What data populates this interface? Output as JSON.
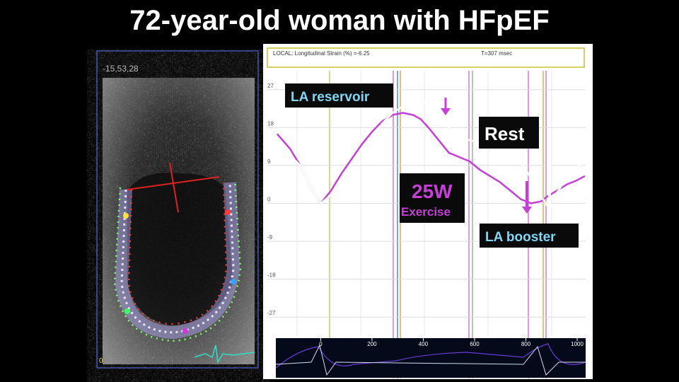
{
  "title": "72-year-old woman with HFpEF",
  "ultrasound": {
    "timestamp": "-15,53,28",
    "corner_label": "0"
  },
  "chart_data": {
    "type": "line",
    "header_left": "LOCAL: Longitudinal Strain (%) =-6.25",
    "header_right": "T=307 msec",
    "x": [
      -170,
      -120,
      -80,
      -40,
      0,
      40,
      80,
      120,
      160,
      200,
      240,
      280,
      320,
      360,
      390,
      420,
      460,
      500,
      540,
      580,
      620,
      660,
      700,
      740,
      780,
      820,
      860,
      880,
      920,
      960,
      1000,
      1030
    ],
    "series": [
      {
        "name": "Rest",
        "color": "#ffffff",
        "values": [
          12,
          11.5,
          9,
          4,
          0,
          2,
          6,
          9.5,
          13,
          16,
          19,
          21.5,
          23,
          24,
          24.5,
          23,
          20,
          18,
          16,
          15,
          14.5,
          14,
          13,
          12,
          10,
          6,
          1.5,
          0,
          2.5,
          6,
          8.5,
          10.5
        ]
      },
      {
        "name": "Exercise",
        "color": "#c63fd6",
        "values": [
          16.5,
          13,
          9,
          4,
          0,
          3,
          7,
          10.5,
          14,
          17,
          19.5,
          21,
          21.5,
          21,
          20,
          18,
          15,
          12,
          11,
          10,
          8,
          6.5,
          5,
          3,
          1,
          0,
          0.5,
          1.5,
          3,
          4.5,
          5.5,
          6.5
        ]
      }
    ],
    "annotations": [
      "LA reservoir",
      "25W",
      "LA booster"
    ],
    "xlim": [
      -175,
      1033
    ],
    "xticks": [
      0,
      200,
      400,
      600,
      800,
      1000
    ],
    "ylim": [
      -31.5,
      31.5
    ],
    "yticks": [
      27,
      18,
      9,
      0,
      -9,
      -18,
      -27
    ],
    "grid": true
  }
}
